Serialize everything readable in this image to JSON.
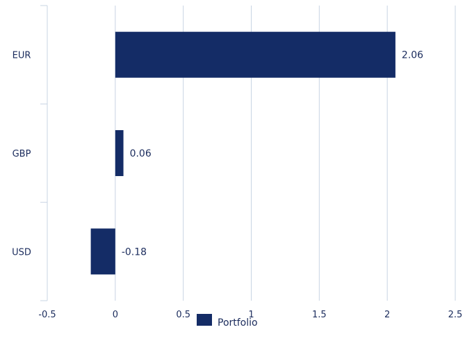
{
  "chart_data": {
    "type": "bar",
    "orientation": "horizontal",
    "categories": [
      "EUR",
      "GBP",
      "USD"
    ],
    "series": [
      {
        "name": "Portfolio",
        "values": [
          2.06,
          0.06,
          -0.18
        ]
      }
    ],
    "data_labels": [
      "2.06",
      "0.06",
      "-0.18"
    ],
    "xlim": [
      -0.5,
      2.5
    ],
    "xticks": [
      -0.5,
      0,
      0.5,
      1,
      1.5,
      2,
      2.5
    ],
    "xtick_labels": [
      "-0.5",
      "0",
      "0.5",
      "1",
      "1.5",
      "2",
      "2.5"
    ],
    "grid": "vertical",
    "legend_position": "bottom",
    "colors": {
      "bar": "#142c66",
      "grid": "#c8d4e3",
      "text": "#1a2b5c"
    }
  }
}
